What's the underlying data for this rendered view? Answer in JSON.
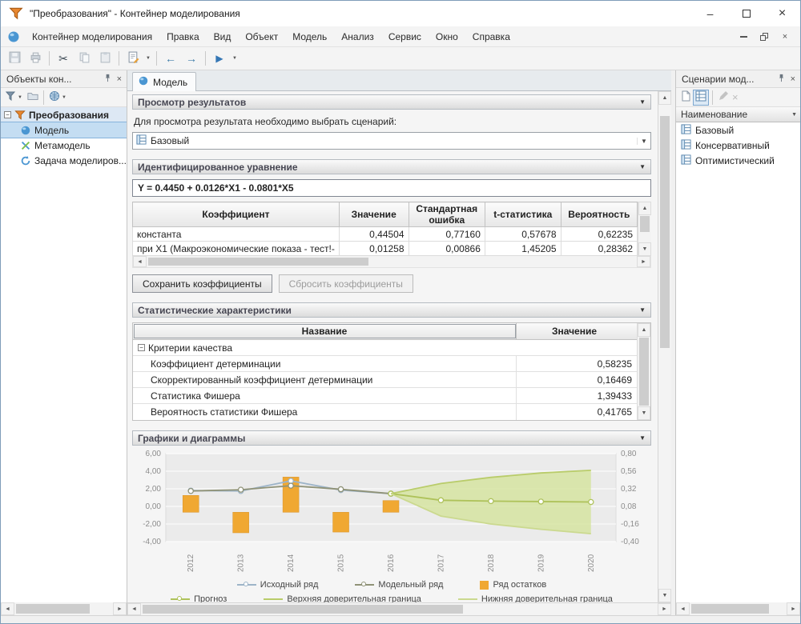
{
  "window": {
    "title": "\"Преобразования\" - Контейнер моделирования"
  },
  "menu": {
    "items": [
      "Контейнер моделирования",
      "Правка",
      "Вид",
      "Объект",
      "Модель",
      "Анализ",
      "Сервис",
      "Окно",
      "Справка"
    ]
  },
  "icons": {
    "up": "▲",
    "down": "▼",
    "left": "◄",
    "right": "►",
    "dropdown": "▼",
    "collapse": "▼",
    "expand_minus": "−",
    "scissors": "✂",
    "back": "←",
    "forward": "→",
    "play": "▶",
    "close": "×",
    "minimize": "–"
  },
  "left_panel": {
    "title": "Объекты кон...",
    "root": "Преобразования",
    "items": [
      {
        "label": "Модель"
      },
      {
        "label": "Метамодель"
      },
      {
        "label": "Задача моделиров..."
      }
    ]
  },
  "main": {
    "tab": "Модель",
    "results": {
      "title": "Просмотр результатов",
      "hint": "Для просмотра результата необходимо выбрать сценарий:",
      "scenario": "Базовый"
    },
    "equation": {
      "title": "Идентифицированное уравнение",
      "formula": "Y = 0.4450 + 0.0126*X1 - 0.0801*X5",
      "headers": [
        "Коэффициент",
        "Значение",
        "Стандартная ошибка",
        "t-статистика",
        "Вероятность"
      ],
      "rows": [
        [
          "константа",
          "0,44504",
          "0,77160",
          "0,57678",
          "0,62235"
        ],
        [
          "при X1 (Макроэкономические показа - тест!-",
          "0,01258",
          "0,00866",
          "1,45205",
          "0,28362"
        ]
      ],
      "save_button": "Сохранить коэффициенты",
      "reset_button": "Сбросить коэффициенты"
    },
    "stats": {
      "title": "Статистические характеристики",
      "headers": [
        "Название",
        "Значение"
      ],
      "group": "Критерии качества",
      "rows": [
        [
          "Коэффициент детерминации",
          "0,58235"
        ],
        [
          "Скорректированный коэффициент детерминации",
          "0,16469"
        ],
        [
          "Статистика Фишера",
          "1,39433"
        ],
        [
          "Вероятность статистики Фишера",
          "0,41765"
        ]
      ]
    },
    "charts_title": "Графики и диаграммы"
  },
  "right_panel": {
    "title": "Сценарии мод...",
    "column_header": "Наименование",
    "items": [
      "Базовый",
      "Консервативный",
      "Оптимистический"
    ]
  },
  "chart_data": {
    "type": "line",
    "x": [
      "2012",
      "2013",
      "2014",
      "2015",
      "2016",
      "2017",
      "2018",
      "2019",
      "2020"
    ],
    "left_axis": {
      "min": -4,
      "max": 6,
      "ticks": [
        6,
        4,
        2,
        0,
        -2,
        -4
      ],
      "tick_labels": [
        "6,00",
        "4,00",
        "2,00",
        "0,00",
        "-2,00",
        "-4,00"
      ]
    },
    "right_axis": {
      "min": -0.4,
      "max": 0.8,
      "tick_labels": [
        "0,80",
        "0,56",
        "0,32",
        "0,08",
        "-0,16",
        "-0,40"
      ]
    },
    "series": [
      {
        "name": "Исходный ряд",
        "type": "line",
        "axis": "left",
        "color": "#9db4c8",
        "marker": true,
        "values": [
          1.8,
          1.75,
          2.9,
          1.85,
          1.45,
          null,
          null,
          null,
          null
        ]
      },
      {
        "name": "Модельный ряд",
        "type": "line",
        "axis": "left",
        "color": "#8f9277",
        "marker": true,
        "values": [
          1.75,
          1.9,
          2.35,
          1.95,
          1.45,
          null,
          null,
          null,
          null
        ]
      },
      {
        "name": "Ряд остатков",
        "type": "bar",
        "axis": "right",
        "color": "#f0a832",
        "values": [
          0.23,
          -0.28,
          0.48,
          -0.27,
          0.16,
          null,
          null,
          null,
          null
        ]
      },
      {
        "name": "Прогноз",
        "type": "line",
        "axis": "left",
        "color": "#aec25a",
        "marker": true,
        "values": [
          null,
          null,
          null,
          null,
          1.45,
          0.7,
          0.6,
          0.55,
          0.5
        ]
      },
      {
        "name": "Верхняя доверительная граница",
        "type": "line",
        "axis": "left",
        "color": "#b9cc6a",
        "values": [
          null,
          null,
          null,
          null,
          1.45,
          2.6,
          3.3,
          3.8,
          4.1
        ]
      },
      {
        "name": "Нижняя доверительная граница",
        "type": "line",
        "axis": "left",
        "color": "#cbd98f",
        "values": [
          null,
          null,
          null,
          null,
          1.45,
          -1.1,
          -2.0,
          -2.6,
          -3.1
        ]
      }
    ],
    "band": {
      "fill": "#d5e49c",
      "opacity": 0.8,
      "upper": "Верхняя доверительная граница",
      "lower": "Нижняя доверительная граница"
    },
    "legend_rows": [
      [
        "Исходный ряд",
        "Модельный ряд",
        "Ряд остатков"
      ],
      [
        "Прогноз",
        "Верхняя доверительная граница",
        "Нижняя доверительная граница"
      ]
    ]
  }
}
